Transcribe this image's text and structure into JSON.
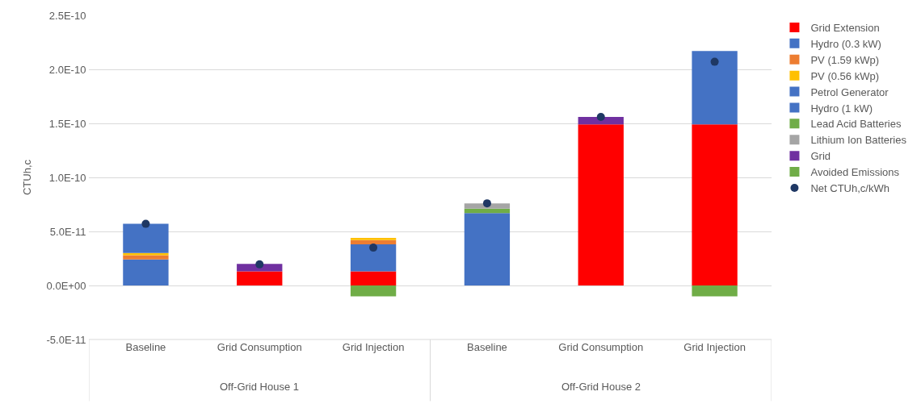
{
  "chart_data": {
    "type": "bar",
    "stacked": true,
    "ylabel": "CTUh,c",
    "categories": [
      "Baseline",
      "Grid Consumption",
      "Grid Injection",
      "Baseline",
      "Grid Consumption",
      "Grid Injection"
    ],
    "annotations": [
      "Off-Grid House 1",
      "Off-Grid House 2"
    ],
    "series": [
      {
        "name": "Grid Extension",
        "color": "#ff0000",
        "values": [
          null,
          1.3e-11,
          1.3e-11,
          null,
          1.49e-10,
          1.49e-10
        ]
      },
      {
        "name": "Hydro (0.3 kW)",
        "color": "#4472c4",
        "values": [
          2.4e-11,
          null,
          2.5e-11,
          null,
          null,
          null
        ]
      },
      {
        "name": "PV (1.59 kWp)",
        "color": "#ed7d31",
        "values": [
          4e-12,
          null,
          4e-12,
          null,
          null,
          null
        ]
      },
      {
        "name": "PV (0.56 kWp)",
        "color": "#ffc000",
        "values": [
          2e-12,
          null,
          2e-12,
          null,
          null,
          null
        ]
      },
      {
        "name": "Petrol Generator",
        "color": "#4472c4",
        "values": [
          2.7e-11,
          null,
          null,
          null,
          null,
          null
        ]
      },
      {
        "name": "Hydro (1 kW)",
        "color": "#4472c4",
        "values": [
          null,
          null,
          null,
          6.7e-11,
          null,
          6.8e-11
        ]
      },
      {
        "name": "Lead Acid Batteries",
        "color": "#70ad47",
        "values": [
          null,
          null,
          null,
          4e-12,
          null,
          null
        ]
      },
      {
        "name": "Lithium Ion Batteries",
        "color": "#a5a5a5",
        "values": [
          null,
          null,
          null,
          5e-12,
          null,
          null
        ]
      },
      {
        "name": "Grid",
        "color": "#7030a0",
        "values": [
          null,
          7e-12,
          null,
          null,
          7e-12,
          null
        ]
      },
      {
        "name": "Avoided Emissions",
        "color": "#70ad47",
        "values": [
          null,
          null,
          -1e-11,
          null,
          null,
          -1e-11
        ]
      },
      {
        "name": "Net CTUh,c/kWh",
        "type": "scatter",
        "marker": "circle",
        "color": "#1f3864",
        "values": [
          5.7e-11,
          1.95e-11,
          3.5e-11,
          7.6e-11,
          1.56e-10,
          2.07e-10
        ]
      }
    ],
    "ylim": [
      -5e-11,
      2.5e-10
    ],
    "yticks": [
      {
        "value": -5e-11,
        "label": "-5.0E-11"
      },
      {
        "value": 0,
        "label": "0.0E+00"
      },
      {
        "value": 5e-11,
        "label": "5.0E-11"
      },
      {
        "value": 1e-10,
        "label": "1.0E-10"
      },
      {
        "value": 1.5e-10,
        "label": "1.5E-10"
      },
      {
        "value": 2e-10,
        "label": "2.0E-10"
      },
      {
        "value": 2.5e-10,
        "label": "2.5E-10"
      }
    ],
    "grid": "y",
    "legend": "right"
  }
}
